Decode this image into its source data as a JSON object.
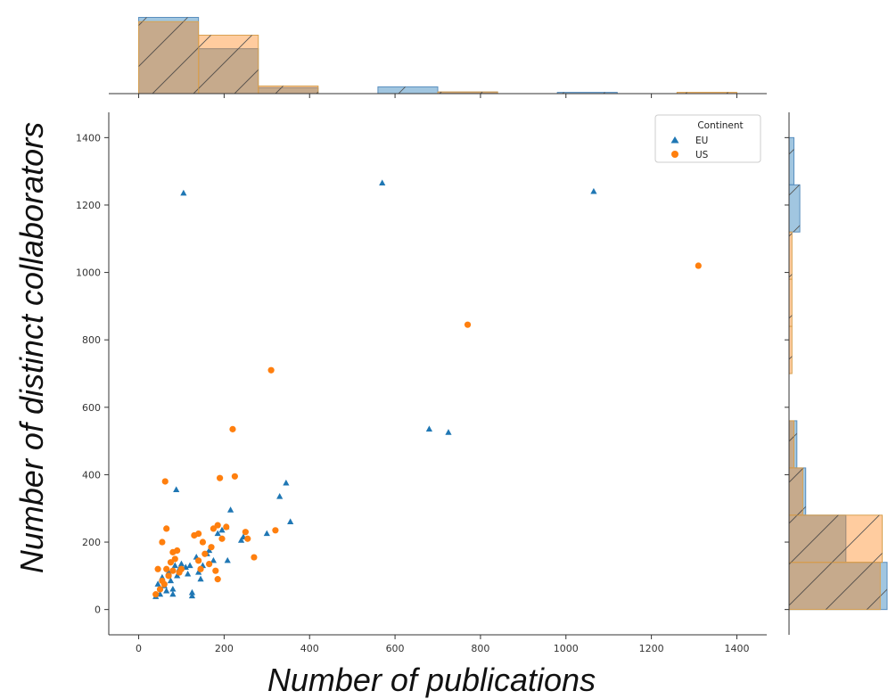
{
  "chart_data": {
    "type": "scatter",
    "title": "",
    "xlabel": "Number of publications",
    "ylabel": "Number of distinct collaborators",
    "xlim": [
      -70,
      1470
    ],
    "ylim": [
      -75,
      1475
    ],
    "xticks": [
      0,
      200,
      400,
      600,
      800,
      1000,
      1200,
      1400
    ],
    "yticks": [
      0,
      200,
      400,
      600,
      800,
      1000,
      1200,
      1400
    ],
    "grid": false,
    "legend": {
      "title": "Continent",
      "placement": "top-right"
    },
    "series": [
      {
        "name": "EU",
        "marker": "triangle",
        "color": "#1f77b4",
        "points": [
          [
            40,
            38
          ],
          [
            45,
            75
          ],
          [
            50,
            45
          ],
          [
            55,
            95
          ],
          [
            60,
            70
          ],
          [
            65,
            55
          ],
          [
            70,
            110
          ],
          [
            75,
            85
          ],
          [
            80,
            60
          ],
          [
            80,
            45
          ],
          [
            85,
            130
          ],
          [
            88,
            355
          ],
          [
            90,
            100
          ],
          [
            95,
            120
          ],
          [
            100,
            135
          ],
          [
            105,
            1235
          ],
          [
            110,
            125
          ],
          [
            115,
            105
          ],
          [
            120,
            130
          ],
          [
            125,
            50
          ],
          [
            125,
            40
          ],
          [
            135,
            155
          ],
          [
            140,
            110
          ],
          [
            145,
            90
          ],
          [
            150,
            130
          ],
          [
            160,
            165
          ],
          [
            165,
            175
          ],
          [
            175,
            145
          ],
          [
            185,
            225
          ],
          [
            195,
            235
          ],
          [
            205,
            245
          ],
          [
            208,
            145
          ],
          [
            215,
            295
          ],
          [
            240,
            205
          ],
          [
            245,
            215
          ],
          [
            300,
            225
          ],
          [
            330,
            335
          ],
          [
            345,
            375
          ],
          [
            355,
            260
          ],
          [
            570,
            1265
          ],
          [
            680,
            535
          ],
          [
            725,
            525
          ],
          [
            1065,
            1240
          ]
        ]
      },
      {
        "name": "US",
        "marker": "circle",
        "color": "#ff7f0e",
        "points": [
          [
            40,
            45
          ],
          [
            45,
            120
          ],
          [
            50,
            60
          ],
          [
            55,
            85
          ],
          [
            55,
            200
          ],
          [
            60,
            75
          ],
          [
            62,
            380
          ],
          [
            65,
            120
          ],
          [
            65,
            240
          ],
          [
            70,
            100
          ],
          [
            75,
            140
          ],
          [
            80,
            115
          ],
          [
            80,
            170
          ],
          [
            85,
            150
          ],
          [
            90,
            175
          ],
          [
            95,
            110
          ],
          [
            100,
            120
          ],
          [
            130,
            220
          ],
          [
            140,
            225
          ],
          [
            140,
            145
          ],
          [
            145,
            120
          ],
          [
            150,
            200
          ],
          [
            155,
            165
          ],
          [
            165,
            135
          ],
          [
            170,
            185
          ],
          [
            175,
            240
          ],
          [
            180,
            115
          ],
          [
            185,
            90
          ],
          [
            185,
            250
          ],
          [
            190,
            390
          ],
          [
            195,
            210
          ],
          [
            205,
            245
          ],
          [
            220,
            535
          ],
          [
            225,
            395
          ],
          [
            250,
            230
          ],
          [
            255,
            210
          ],
          [
            270,
            155
          ],
          [
            310,
            710
          ],
          [
            320,
            235
          ],
          [
            770,
            845
          ],
          [
            1310,
            1020
          ]
        ]
      }
    ],
    "top_histogram": {
      "bin_edges": [
        0,
        140,
        280,
        420,
        560,
        700,
        840,
        980,
        1120,
        1260,
        1400
      ],
      "EU": [
        0.9,
        0.53,
        0.07,
        0,
        0.08,
        0.02,
        0,
        0.015,
        0,
        0
      ],
      "US": [
        0.85,
        0.69,
        0.09,
        0,
        0,
        0.02,
        0,
        0,
        0,
        0.015
      ]
    },
    "right_histogram": {
      "bin_edges": [
        0,
        140,
        280,
        420,
        560,
        700,
        840,
        980,
        1120,
        1260,
        1400
      ],
      "EU": [
        1.0,
        0.58,
        0.17,
        0.08,
        0,
        0,
        0,
        0,
        0.11,
        0.05
      ],
      "US": [
        0.93,
        0.95,
        0.14,
        0.05,
        0,
        0.03,
        0.03,
        0.03,
        0,
        0
      ]
    }
  }
}
